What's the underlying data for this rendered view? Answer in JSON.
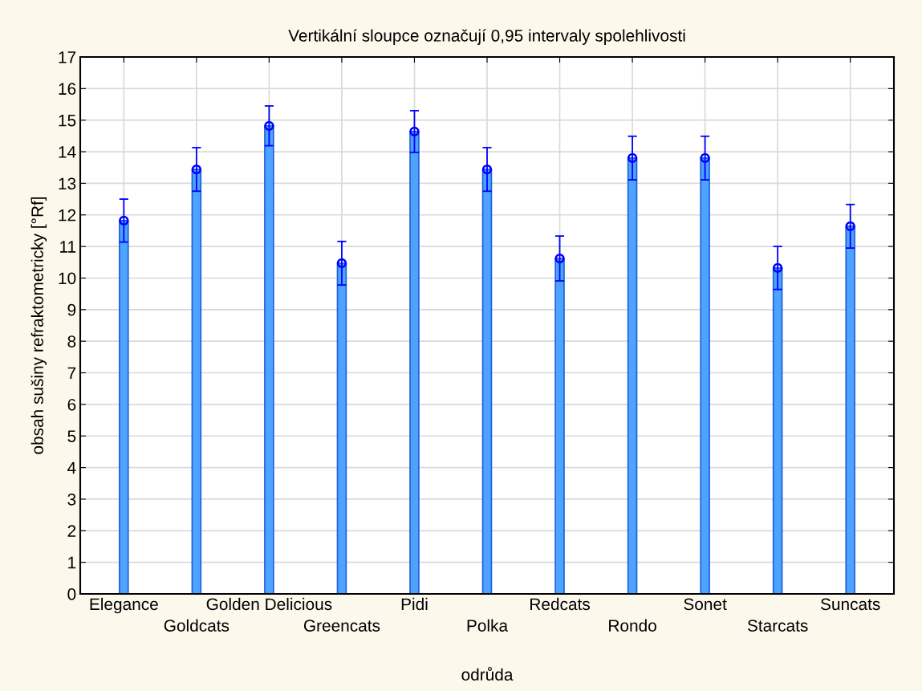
{
  "chart_data": {
    "type": "bar",
    "title": "Vertikální sloupce označují 0,95 intervaly spolehlivosti",
    "xlabel": "odrůda",
    "ylabel": "obsah sušiny refraktometricky [°Rf]",
    "categories": [
      "Elegance",
      "Goldcats",
      "Golden Delicious",
      "Greencats",
      "Pidi",
      "Polka",
      "Redcats",
      "Rondo",
      "Sonet",
      "Starcats",
      "Suncats"
    ],
    "series": [
      {
        "color": "#4da3ff",
        "values": [
          11.82,
          13.44,
          14.82,
          10.47,
          14.64,
          13.44,
          10.62,
          13.8,
          13.8,
          10.32,
          11.64
        ],
        "errors": [
          0.68,
          0.69,
          0.63,
          0.69,
          0.66,
          0.69,
          0.71,
          0.69,
          0.69,
          0.68,
          0.69
        ]
      },
      {
        "type": "scatter",
        "color": "#0000ff",
        "marker": "circle",
        "x": [
          "Elegance",
          "Goldcats",
          "Golden Delicious",
          "Greencats",
          "Pidi",
          "Polka",
          "Redcats",
          "Rondo",
          "Sonet",
          "Starcats",
          "Suncats"
        ],
        "values": [
          11.82,
          13.44,
          14.82,
          10.47,
          14.64,
          13.44,
          10.62,
          13.8,
          13.8,
          10.32,
          11.64
        ]
      }
    ],
    "ylim": [
      0,
      17
    ],
    "yticks": [
      0,
      1,
      2,
      3,
      4,
      5,
      6,
      7,
      8,
      9,
      10,
      11,
      12,
      13,
      14,
      15,
      16,
      17
    ],
    "grid": true
  }
}
